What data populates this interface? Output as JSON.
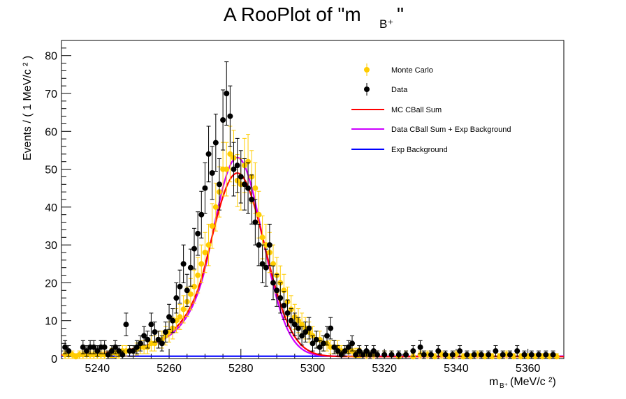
{
  "chart_data": {
    "type": "scatter",
    "title_main": "A RooPlot of \"m",
    "title_sub": "B⁺",
    "title_end": "\"",
    "ylabel": "Events / ( 1 MeV/c  ² )",
    "xlabel_main": "m",
    "xlabel_sub": "B⁺",
    "xlabel_rest": " (MeV/c ²)",
    "xlim": [
      5230,
      5370
    ],
    "ylim": [
      0,
      84
    ],
    "xticks": [
      5240,
      5260,
      5280,
      5300,
      5320,
      5340,
      5360
    ],
    "yticks": [
      0,
      10,
      20,
      30,
      40,
      50,
      60,
      70,
      80
    ],
    "grid": false,
    "legend_placement": "top-right",
    "legend": [
      {
        "name": "Monte Carlo",
        "kind": "marker",
        "color": "#ffcc00"
      },
      {
        "name": "Data",
        "kind": "marker",
        "color": "#000000"
      },
      {
        "name": "MC CBall Sum",
        "kind": "line",
        "color": "#ff0000"
      },
      {
        "name": "Data CBall Sum + Exp Background",
        "kind": "line",
        "color": "#cc00ff"
      },
      {
        "name": "Exp Background",
        "kind": "line",
        "color": "#0000ff"
      }
    ],
    "series": [
      {
        "name": "Data",
        "color": "#000000",
        "x": [
          5231,
          5232,
          5236,
          5237,
          5238,
          5239,
          5240,
          5241,
          5242,
          5243,
          5244,
          5245,
          5246,
          5247,
          5248,
          5249,
          5250,
          5251,
          5252,
          5253,
          5254,
          5255,
          5256,
          5257,
          5258,
          5259,
          5260,
          5261,
          5262,
          5263,
          5264,
          5265,
          5266,
          5267,
          5268,
          5269,
          5270,
          5271,
          5272,
          5273,
          5274,
          5275,
          5276,
          5277,
          5278,
          5279,
          5280,
          5281,
          5282,
          5283,
          5284,
          5285,
          5286,
          5287,
          5288,
          5289,
          5290,
          5291,
          5292,
          5293,
          5294,
          5295,
          5296,
          5297,
          5298,
          5299,
          5300,
          5301,
          5302,
          5303,
          5304,
          5305,
          5306,
          5307,
          5308,
          5309,
          5310,
          5311,
          5312,
          5313,
          5314,
          5315,
          5316,
          5317,
          5318,
          5320,
          5322,
          5324,
          5326,
          5328,
          5330,
          5331,
          5333,
          5335,
          5337,
          5339,
          5341,
          5343,
          5345,
          5347,
          5349,
          5351,
          5353,
          5355,
          5357,
          5359,
          5361,
          5363,
          5365,
          5367
        ],
        "y": [
          3,
          2,
          3,
          2,
          3,
          3,
          2,
          3,
          3,
          1,
          2,
          3,
          2,
          1,
          9,
          2,
          2,
          3,
          4,
          6,
          5,
          9,
          7,
          5,
          4,
          7,
          11,
          10,
          16,
          19,
          25,
          18,
          24,
          29,
          33,
          38,
          45,
          54,
          49,
          57,
          46,
          63,
          70,
          64,
          50,
          51,
          48,
          46,
          45,
          42,
          36,
          30,
          25,
          24,
          30,
          20,
          18,
          16,
          14,
          12,
          10,
          9,
          8,
          6,
          7,
          8,
          4,
          5,
          3,
          4,
          6,
          8,
          3,
          2,
          1,
          2,
          3,
          4,
          1,
          2,
          1,
          2,
          1,
          2,
          1,
          1,
          1,
          1,
          1,
          2,
          3,
          1,
          1,
          2,
          1,
          1,
          2,
          1,
          1,
          1,
          1,
          2,
          1,
          1,
          2,
          1,
          1,
          1,
          1,
          1
        ]
      },
      {
        "name": "Monte Carlo",
        "color": "#ffcc00",
        "x": [
          5231,
          5232,
          5233,
          5234,
          5235,
          5236,
          5237,
          5238,
          5239,
          5240,
          5241,
          5242,
          5243,
          5244,
          5245,
          5246,
          5247,
          5248,
          5249,
          5250,
          5251,
          5252,
          5253,
          5254,
          5255,
          5256,
          5257,
          5258,
          5259,
          5260,
          5261,
          5262,
          5263,
          5264,
          5265,
          5266,
          5267,
          5268,
          5269,
          5270,
          5271,
          5272,
          5273,
          5274,
          5275,
          5276,
          5277,
          5278,
          5279,
          5280,
          5281,
          5282,
          5283,
          5284,
          5285,
          5286,
          5287,
          5288,
          5289,
          5290,
          5291,
          5292,
          5293,
          5294,
          5295,
          5296,
          5297,
          5298,
          5299,
          5300,
          5301,
          5302,
          5303,
          5304,
          5305,
          5306,
          5307,
          5308,
          5309,
          5310,
          5311,
          5312,
          5313,
          5314,
          5315,
          5316,
          5317,
          5318,
          5320,
          5322,
          5324,
          5326,
          5328,
          5330,
          5332,
          5334,
          5336,
          5338,
          5340,
          5342,
          5344,
          5346,
          5348,
          5350,
          5352,
          5354,
          5356,
          5358,
          5360,
          5362,
          5364,
          5366,
          5368
        ],
        "y": [
          1,
          1,
          1,
          0.5,
          1,
          1,
          1,
          1,
          1,
          1,
          1,
          1,
          1,
          1.5,
          1.5,
          1,
          2,
          2,
          2,
          2,
          2.5,
          3,
          3,
          3,
          4,
          4,
          5,
          5,
          6,
          7,
          8,
          10,
          11,
          13,
          15,
          17,
          19,
          22,
          25,
          28,
          30,
          35,
          40,
          44,
          50,
          50,
          54,
          53,
          47,
          46,
          51,
          52,
          48,
          45,
          38,
          32,
          30,
          28,
          25,
          22,
          20,
          18,
          15,
          13,
          11,
          10,
          9,
          8,
          7,
          6,
          5,
          5,
          4,
          4,
          3,
          3,
          3,
          2,
          2,
          2,
          2,
          1.5,
          1.5,
          1,
          1,
          1,
          1,
          1,
          1,
          1,
          0.5,
          1,
          0.5,
          1,
          1,
          0.5,
          1,
          0.5,
          1,
          0.5,
          0.5,
          1,
          0.5,
          0.5,
          0.5,
          1,
          0.5,
          0.5,
          0.5,
          0.5,
          0.5,
          0.5,
          0.5
        ]
      }
    ],
    "curves": [
      {
        "name": "MC CBall Sum",
        "color": "#ff0000",
        "mean": 5279,
        "sigma": 7.6,
        "alpha": 1.2,
        "n": 5,
        "peak": 48.5,
        "base": 0.5
      },
      {
        "name": "Data CBall Sum + Exp Background",
        "color": "#cc00ff",
        "mean": 5279,
        "sigma": 7.0,
        "alpha": 1.2,
        "n": 5,
        "peak": 52.5,
        "base": 0.6
      },
      {
        "name": "Exp Background",
        "color": "#0000ff",
        "mean": 5279,
        "sigma": 7.0,
        "alpha": 1.2,
        "n": 5,
        "peak": 0,
        "base": 0.6
      }
    ]
  }
}
